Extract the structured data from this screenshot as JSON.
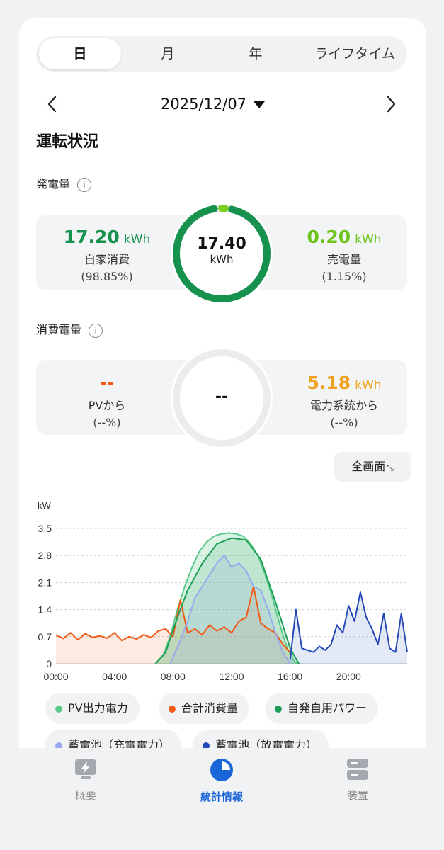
{
  "tabs": [
    "日",
    "月",
    "年",
    "ライフタイム"
  ],
  "active_tab": 0,
  "date": "2025/12/07",
  "section_title": "運転状況",
  "generation": {
    "title": "発電量",
    "info_icon": "info-icon",
    "self_value": "17.20",
    "self_unit": "kWh",
    "self_label": "自家消費",
    "self_pct": "(98.85%)",
    "total_value": "17.40",
    "total_unit": "kWh",
    "sold_value": "0.20",
    "sold_unit": "kWh",
    "sold_label": "売電量",
    "sold_pct": "(1.15%)",
    "ring_self_fraction": 0.9885
  },
  "consumption": {
    "title": "消費電量",
    "info_icon": "info-icon",
    "pv_value": "--",
    "pv_label": "PVから",
    "pv_pct": "(--%)",
    "total_value": "--",
    "grid_value": "5.18",
    "grid_unit": "kWh",
    "grid_label": "電力系統から",
    "grid_pct": "(--%)"
  },
  "fullscreen_label": "全画面",
  "colors": {
    "green_dark": "#16924e",
    "green_light": "#7ccf22",
    "orange": "#f05a14",
    "amber": "#f0a21e",
    "pv": "#5ac98a",
    "self_use": "#1e9e54",
    "batt_charge": "#9aa8ee",
    "batt_discharge": "#2448b8",
    "accent_blue": "#1a66d9"
  },
  "chart_data": {
    "type": "area",
    "ylabel": "kW",
    "yticks": [
      "3.5",
      "2.8",
      "2.1",
      "1.4",
      "0.7",
      "0"
    ],
    "ylim": [
      0,
      3.5
    ],
    "xticks": [
      "00:00",
      "04:00",
      "08:00",
      "12:00",
      "16:00",
      "20:00"
    ],
    "xlim_hours": [
      0,
      24
    ],
    "grid": true,
    "series": [
      {
        "name": "PV出力電力",
        "color": "#5ac98a",
        "x": [
          6.8,
          7.3,
          7.8,
          8.3,
          8.8,
          9.3,
          9.8,
          10.3,
          10.8,
          11.3,
          11.8,
          12.3,
          12.8,
          13.3,
          13.8,
          14.3,
          14.8,
          15.3,
          15.8,
          16.3,
          16.6
        ],
        "y": [
          0,
          0.2,
          0.7,
          1.4,
          2.0,
          2.5,
          2.9,
          3.15,
          3.3,
          3.36,
          3.38,
          3.36,
          3.3,
          3.1,
          2.8,
          2.3,
          1.7,
          1.0,
          0.4,
          0.05,
          0
        ]
      },
      {
        "name": "合計消費量",
        "color": "#f05a14",
        "x": [
          0,
          0.5,
          1,
          1.5,
          2,
          2.5,
          3,
          3.5,
          4,
          4.5,
          5,
          5.5,
          6,
          6.5,
          7,
          7.5,
          8,
          8.5,
          9,
          9.5,
          10,
          10.5,
          11,
          11.5,
          12,
          12.5,
          13,
          13.5,
          14,
          14.5,
          15,
          15.5,
          16
        ],
        "y": [
          0.75,
          0.65,
          0.8,
          0.62,
          0.78,
          0.68,
          0.72,
          0.66,
          0.8,
          0.6,
          0.7,
          0.64,
          0.75,
          0.68,
          0.85,
          0.9,
          0.7,
          1.65,
          0.8,
          0.9,
          0.75,
          1.0,
          0.85,
          0.95,
          0.8,
          1.1,
          1.2,
          2.0,
          1.05,
          0.9,
          0.8,
          0.5,
          0.3
        ]
      },
      {
        "name": "自発自用パワー",
        "color": "#1e9e54",
        "x": [
          6.8,
          7.5,
          8.3,
          9.0,
          10.0,
          11.0,
          12.0,
          13.0,
          14.0,
          15.0,
          16.0,
          16.6
        ],
        "y": [
          0,
          0.3,
          1.2,
          1.9,
          2.6,
          3.1,
          3.25,
          3.2,
          2.7,
          1.6,
          0.4,
          0
        ]
      },
      {
        "name": "蓄電池（充電電力）",
        "color": "#9aa8ee",
        "x": [
          7.8,
          8.4,
          9.0,
          9.5,
          10.0,
          10.5,
          11.0,
          11.5,
          12.0,
          12.5,
          13.0,
          13.5,
          14.0,
          14.5,
          15.0,
          15.5,
          16.0
        ],
        "y": [
          0,
          0.5,
          1.1,
          1.7,
          2.0,
          2.3,
          2.6,
          2.8,
          2.5,
          2.6,
          2.4,
          2.0,
          1.9,
          1.4,
          0.8,
          0.3,
          0
        ]
      },
      {
        "name": "蓄電池（放電電力）",
        "color": "#2448b8",
        "x": [
          16.0,
          16.4,
          16.8,
          17.2,
          17.6,
          18.0,
          18.4,
          18.8,
          19.2,
          19.6,
          20.0,
          20.4,
          20.8,
          21.2,
          21.6,
          22.0,
          22.4,
          22.8,
          23.2,
          23.6,
          24.0
        ],
        "y": [
          0.1,
          1.4,
          0.4,
          0.35,
          0.3,
          0.45,
          0.35,
          0.5,
          1.0,
          0.8,
          1.5,
          1.1,
          1.85,
          1.2,
          0.9,
          0.5,
          1.3,
          0.4,
          0.3,
          1.3,
          0.3
        ]
      }
    ]
  },
  "legend": [
    {
      "label": "PV出力電力",
      "color": "#5ac98a"
    },
    {
      "label": "合計消費量",
      "color": "#f05a14"
    },
    {
      "label": "自発自用パワー",
      "color": "#1e9e54"
    },
    {
      "label": "蓄電池（充電電力）",
      "color": "#9aa8ee"
    },
    {
      "label": "蓄電池（放電電力）",
      "color": "#2448b8"
    }
  ],
  "bottom_nav": [
    {
      "label": "概要",
      "icon": "overview-icon"
    },
    {
      "label": "統計情報",
      "icon": "statistics-pie-icon"
    },
    {
      "label": "装置",
      "icon": "device-icon"
    }
  ],
  "active_nav": 1
}
